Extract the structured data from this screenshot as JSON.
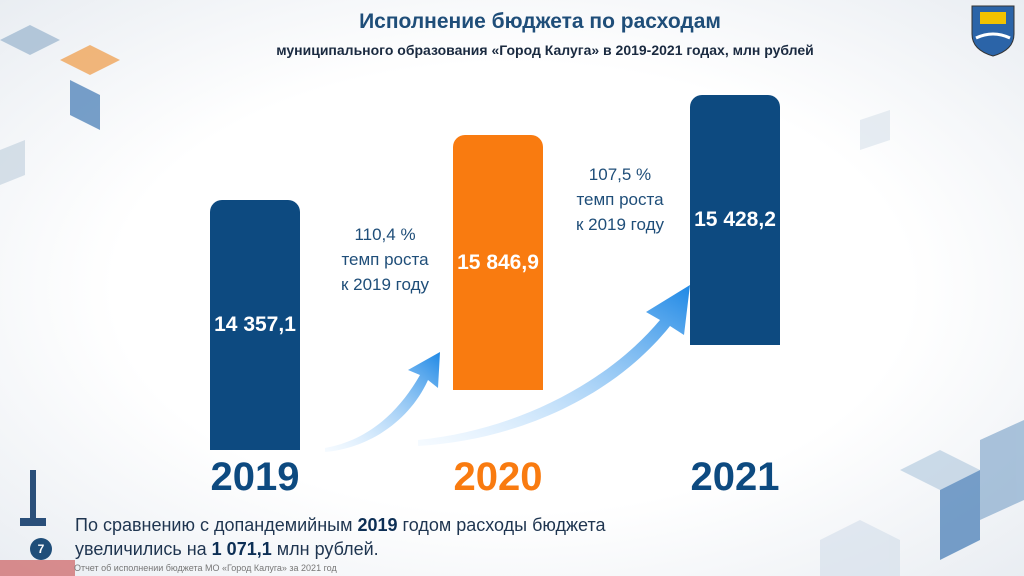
{
  "header": {
    "title": "Исполнение бюджета по расходам",
    "subtitle": "муниципального образования «Город Калуга» в 2019-2021 годах, млн рублей"
  },
  "columns": [
    {
      "year": "2019",
      "value": "14 357,1",
      "color": "#0d4a80",
      "year_color": "#0d4a80"
    },
    {
      "year": "2020",
      "value": "15 846,9",
      "color": "#f97b10",
      "year_color": "#f97b10"
    },
    {
      "year": "2021",
      "value": "15 428,2",
      "color": "#0d4a80",
      "year_color": "#0d4a80"
    }
  ],
  "growth": [
    [
      "110,4 %",
      "темп роста",
      "к 2019 году"
    ],
    [
      "107,5 %",
      "темп роста",
      "к 2019 году"
    ]
  ],
  "summary": [
    [
      "По сравнению с допандемийным",
      "2019",
      "годом расходы бюджета"
    ],
    [
      "увеличились на",
      "1 071,1",
      "млн рублей."
    ]
  ],
  "footer": "Отчет об исполнении бюджета МО «Город Калуга» за 2021 год",
  "page_number": "7"
}
